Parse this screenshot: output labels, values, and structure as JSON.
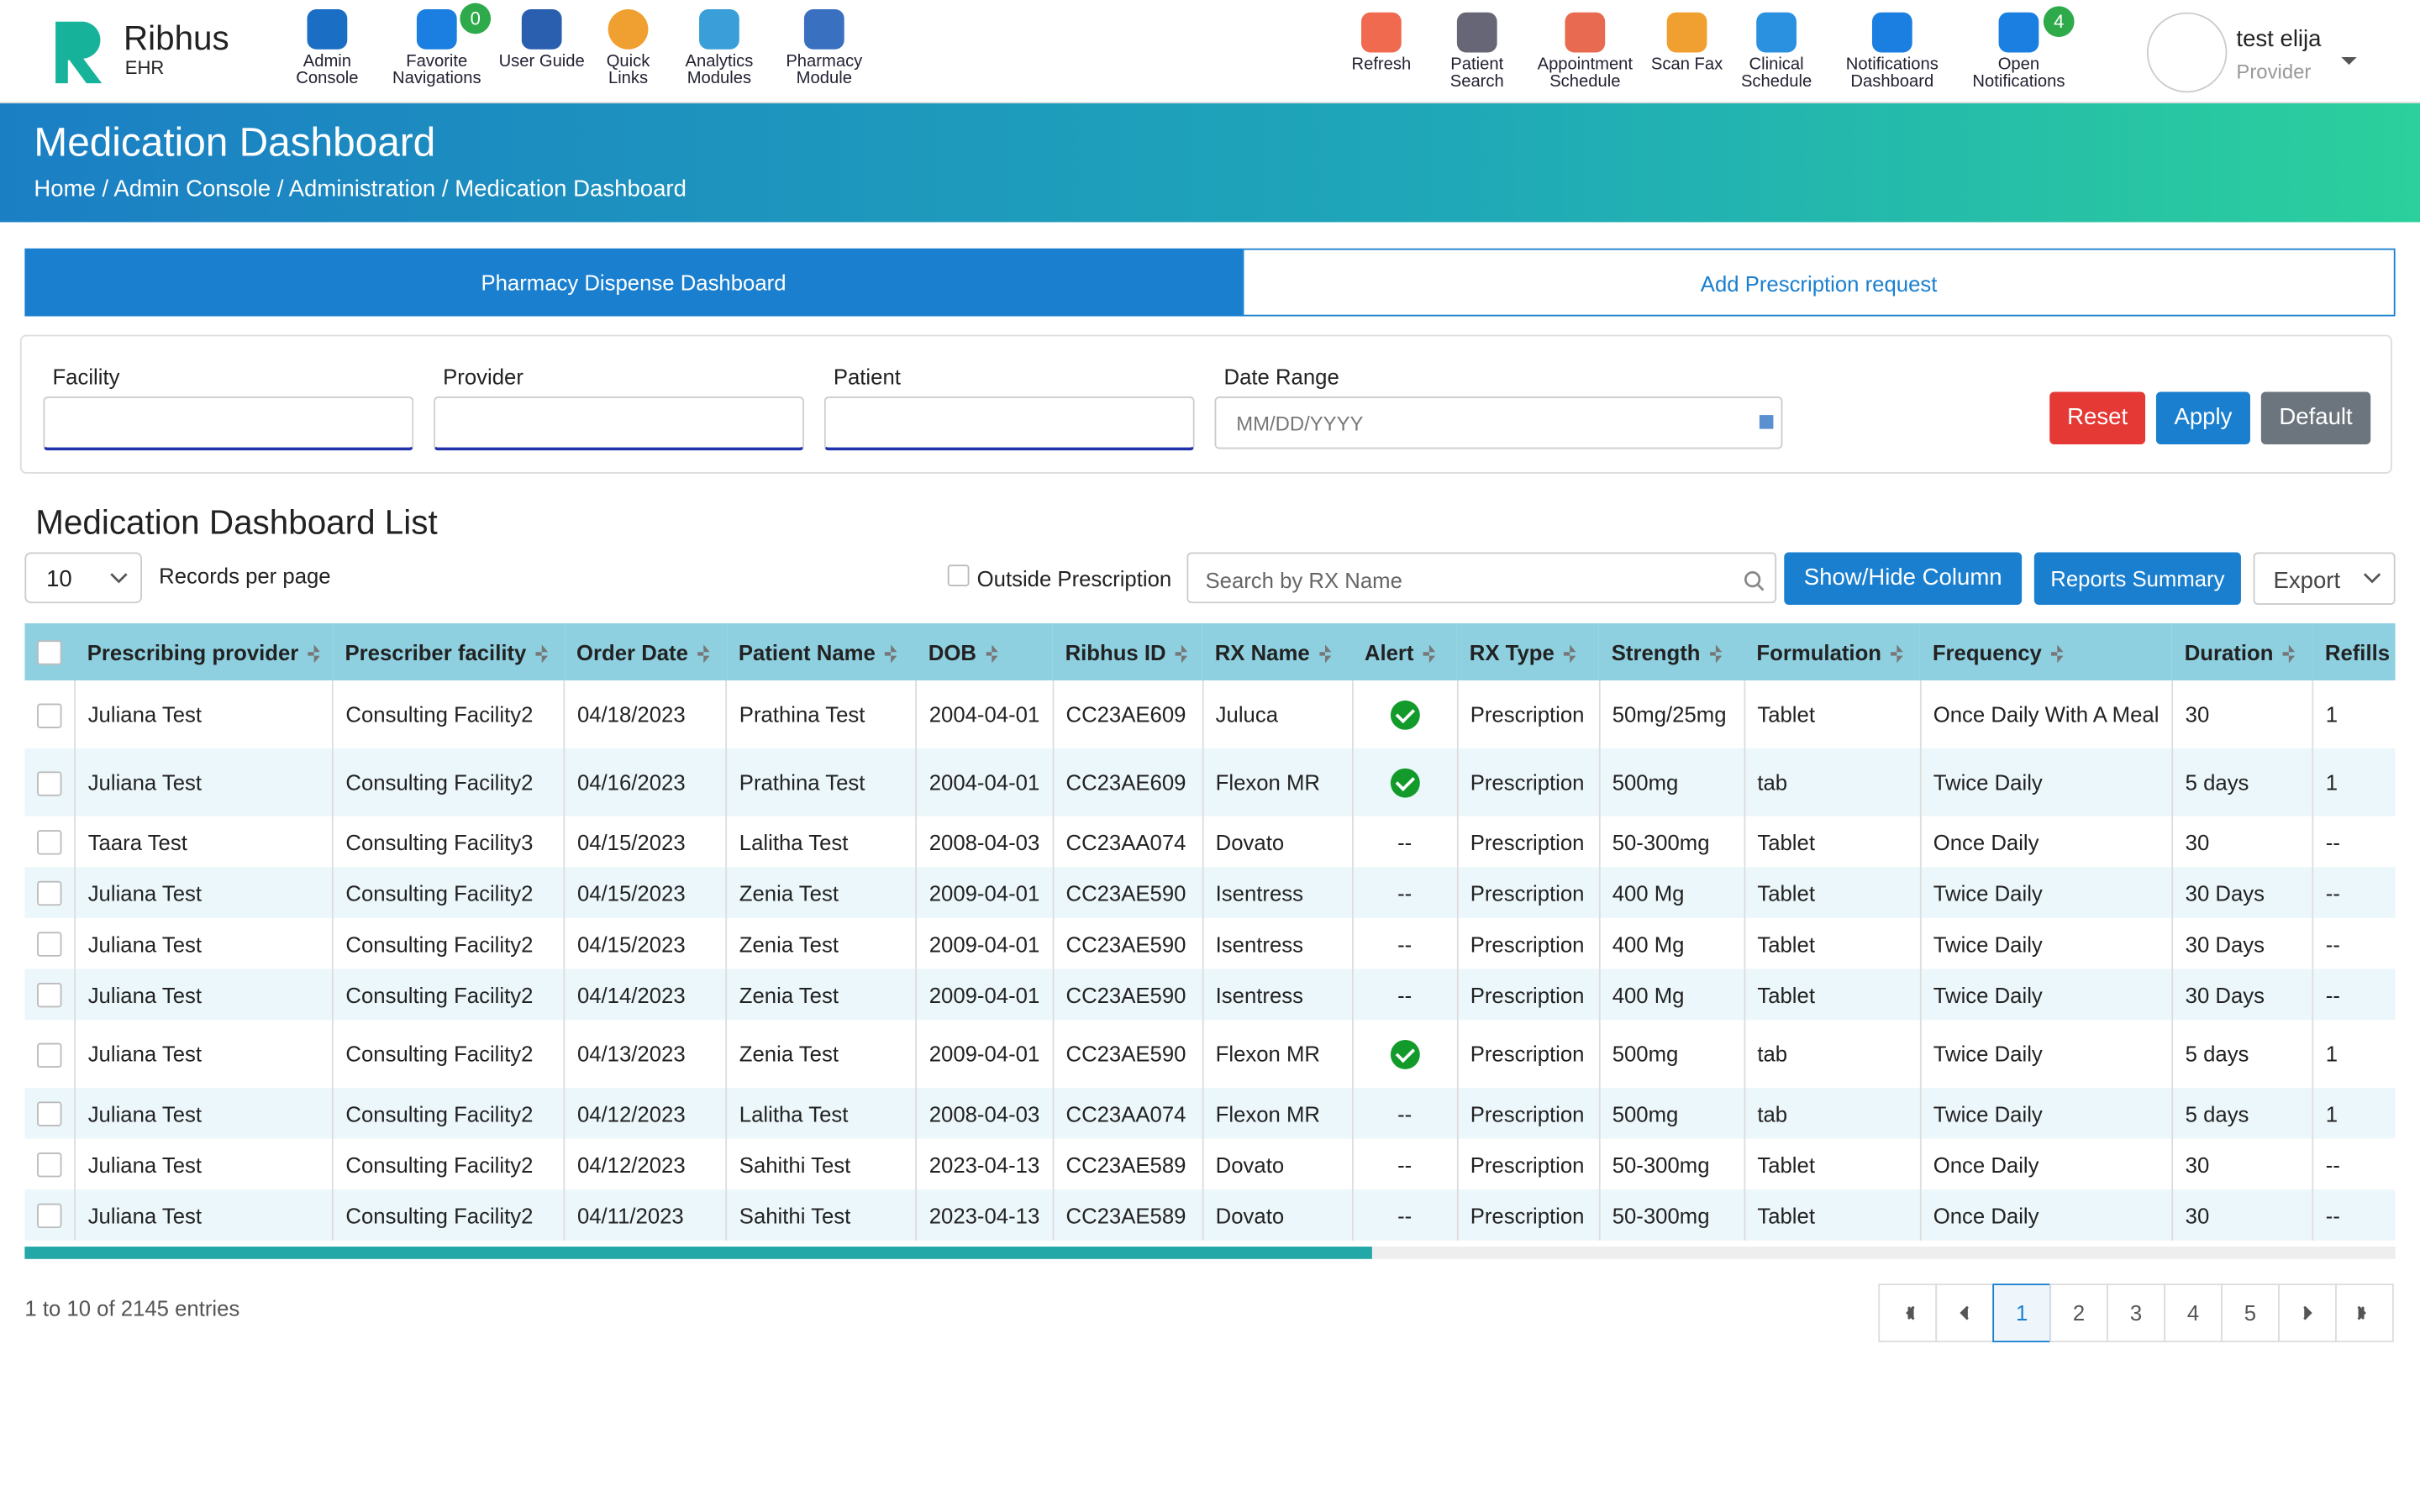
{
  "header": {
    "logo": {
      "name": "Ribhus",
      "sub": "EHR"
    },
    "nav_left": [
      {
        "label": "Admin Console"
      },
      {
        "label": "Favorite Navigations",
        "badge": "0"
      },
      {
        "label": "User Guide"
      },
      {
        "label": "Quick Links"
      },
      {
        "label": "Analytics Modules"
      },
      {
        "label": "Pharmacy Module"
      }
    ],
    "nav_right": [
      {
        "label": "Refresh"
      },
      {
        "label": "Patient Search"
      },
      {
        "label": "Appointment Schedule"
      },
      {
        "label": "Scan Fax"
      },
      {
        "label": "Clinical Schedule"
      },
      {
        "label": "Notifications Dashboard"
      },
      {
        "label": "Open Notifications",
        "badge": "4"
      }
    ],
    "user": {
      "name": "test elija",
      "role": "Provider"
    }
  },
  "banner": {
    "title": "Medication Dashboard",
    "breadcrumb": [
      "Home",
      "Admin Console",
      "Administration",
      "Medication Dashboard"
    ]
  },
  "tabs": [
    "Pharmacy Dispense Dashboard",
    "Add Prescription request"
  ],
  "filters": {
    "fields": [
      "Facility",
      "Provider",
      "Patient",
      "Date Range"
    ],
    "date_placeholder": "MM/DD/YYYY",
    "buttons": [
      "Reset",
      "Apply",
      "Default"
    ]
  },
  "list": {
    "title": "Medication Dashboard List",
    "page_size": "10",
    "records_label": "Records per page",
    "outside": "Outside Prescription",
    "search_placeholder": "Search by RX Name",
    "buttons": [
      "Show/Hide Column",
      "Reports Summary",
      "Export"
    ]
  },
  "table": {
    "columns": [
      "Prescribing provider",
      "Prescriber facility",
      "Order Date",
      "Patient Name",
      "DOB",
      "Ribhus ID",
      "RX Name",
      "Alert",
      "RX Type",
      "Strength",
      "Formulation",
      "Frequency",
      "Duration",
      "Refills"
    ],
    "rows": [
      [
        "Juliana Test",
        "Consulting Facility2",
        "04/18/2023",
        "Prathina Test",
        "2004-04-01",
        "CC23AE609",
        "Juluca",
        true,
        "Prescription",
        "50mg/25mg",
        "Tablet",
        "Once Daily With A Meal",
        "30",
        "1"
      ],
      [
        "Juliana Test",
        "Consulting Facility2",
        "04/16/2023",
        "Prathina Test",
        "2004-04-01",
        "CC23AE609",
        "Flexon MR",
        true,
        "Prescription",
        "500mg",
        "tab",
        "Twice Daily",
        "5 days",
        "1"
      ],
      [
        "Taara Test",
        "Consulting Facility3",
        "04/15/2023",
        "Lalitha Test",
        "2008-04-03",
        "CC23AA074",
        "Dovato",
        "--",
        "Prescription",
        "50-300mg",
        "Tablet",
        "Once Daily",
        "30",
        "--"
      ],
      [
        "Juliana Test",
        "Consulting Facility2",
        "04/15/2023",
        "Zenia Test",
        "2009-04-01",
        "CC23AE590",
        "Isentress",
        "--",
        "Prescription",
        "400 Mg",
        "Tablet",
        "Twice Daily",
        "30 Days",
        "--"
      ],
      [
        "Juliana Test",
        "Consulting Facility2",
        "04/15/2023",
        "Zenia Test",
        "2009-04-01",
        "CC23AE590",
        "Isentress",
        "--",
        "Prescription",
        "400 Mg",
        "Tablet",
        "Twice Daily",
        "30 Days",
        "--"
      ],
      [
        "Juliana Test",
        "Consulting Facility2",
        "04/14/2023",
        "Zenia Test",
        "2009-04-01",
        "CC23AE590",
        "Isentress",
        "--",
        "Prescription",
        "400 Mg",
        "Tablet",
        "Twice Daily",
        "30 Days",
        "--"
      ],
      [
        "Juliana Test",
        "Consulting Facility2",
        "04/13/2023",
        "Zenia Test",
        "2009-04-01",
        "CC23AE590",
        "Flexon MR",
        true,
        "Prescription",
        "500mg",
        "tab",
        "Twice Daily",
        "5 days",
        "1"
      ],
      [
        "Juliana Test",
        "Consulting Facility2",
        "04/12/2023",
        "Lalitha Test",
        "2008-04-03",
        "CC23AA074",
        "Flexon MR",
        "--",
        "Prescription",
        "500mg",
        "tab",
        "Twice Daily",
        "5 days",
        "1"
      ],
      [
        "Juliana Test",
        "Consulting Facility2",
        "04/12/2023",
        "Sahithi Test",
        "2023-04-13",
        "CC23AE589",
        "Dovato",
        "--",
        "Prescription",
        "50-300mg",
        "Tablet",
        "Once Daily",
        "30",
        "--"
      ],
      [
        "Juliana Test",
        "Consulting Facility2",
        "04/11/2023",
        "Sahithi Test",
        "2023-04-13",
        "CC23AE589",
        "Dovato",
        "--",
        "Prescription",
        "50-300mg",
        "Tablet",
        "Once Daily",
        "30",
        "--"
      ]
    ]
  },
  "footer": {
    "summary": "1 to 10 of 2145 entries",
    "pages": [
      "1",
      "2",
      "3",
      "4",
      "5"
    ],
    "current": "1"
  }
}
